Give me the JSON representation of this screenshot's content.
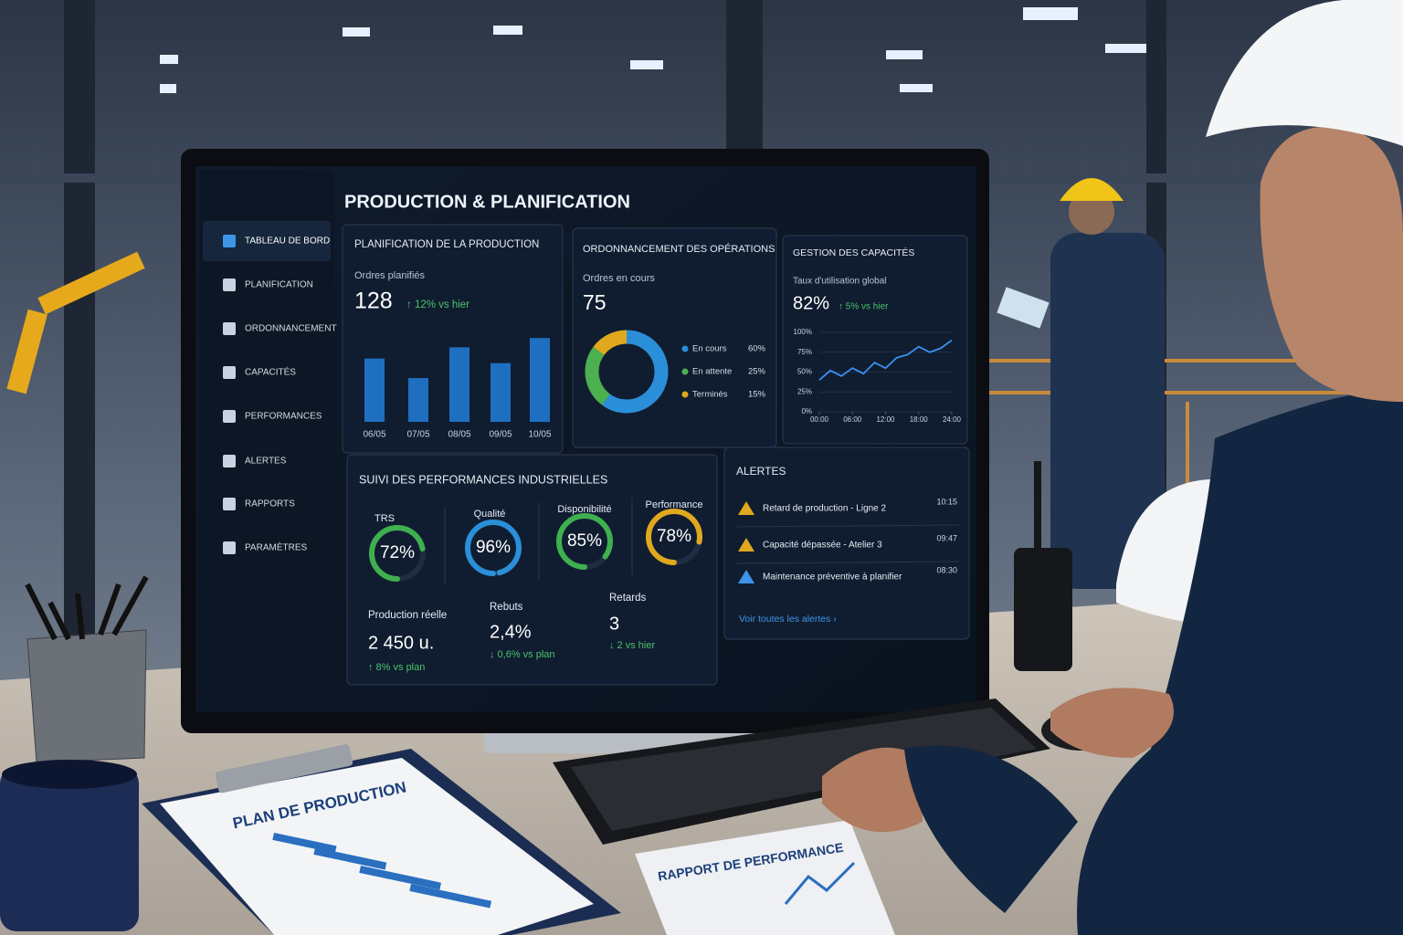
{
  "screen": {
    "title": "PRODUCTION & PLANIFICATION"
  },
  "sidebar": {
    "items": [
      "TABLEAU DE BORD",
      "PLANIFICATION",
      "ORDONNANCEMENT",
      "CAPACITÉS",
      "PERFORMANCES",
      "ALERTES",
      "RAPPORTS",
      "PARAMÈTRES"
    ],
    "active": 0
  },
  "planning": {
    "title": "PLANIFICATION DE LA PRODUCTION",
    "kpi_label": "Ordres planifiés",
    "kpi_value": "128",
    "kpi_delta": "↑ 12% vs hier",
    "chart": {
      "type": "bar",
      "categories": [
        "06/05",
        "07/05",
        "08/05",
        "09/05",
        "10/05"
      ],
      "values": [
        68,
        47,
        80,
        63,
        90
      ],
      "ylim": [
        0,
        100
      ],
      "color": "#1f6fc0"
    }
  },
  "scheduling": {
    "title": "ORDONNANCEMENT DES OPÉRATIONS",
    "kpi_label": "Ordres en cours",
    "kpi_value": "75",
    "chart": {
      "type": "donut",
      "categories": [
        "En cours",
        "En attente",
        "Terminés"
      ],
      "values": [
        60,
        25,
        15
      ],
      "value_labels": [
        "60%",
        "25%",
        "15%"
      ],
      "colors": [
        "#2a8fd8",
        "#4caf50",
        "#e0a81e"
      ]
    }
  },
  "capacity": {
    "title": "GESTION DES CAPACITÉS",
    "kpi_label": "Taux d'utilisation global",
    "kpi_value": "82%",
    "kpi_delta": "↑ 5% vs hier",
    "chart": {
      "type": "line",
      "x": [
        0,
        2,
        4,
        6,
        8,
        10,
        12,
        14,
        16,
        18,
        20,
        22,
        24
      ],
      "values": [
        40,
        52,
        45,
        55,
        48,
        62,
        55,
        68,
        72,
        82,
        75,
        80,
        90
      ],
      "xlim": [
        0,
        24
      ],
      "ylim": [
        0,
        100
      ],
      "xticks": [
        {
          "value": 0,
          "label": "00:00"
        },
        {
          "value": 6,
          "label": "06:00"
        },
        {
          "value": 12,
          "label": "12:00"
        },
        {
          "value": 18,
          "label": "18:00"
        },
        {
          "value": 24,
          "label": "24:00"
        }
      ],
      "yticks": [
        {
          "value": 0,
          "label": "0%"
        },
        {
          "value": 25,
          "label": "25%"
        },
        {
          "value": 50,
          "label": "50%"
        },
        {
          "value": 75,
          "label": "75%"
        },
        {
          "value": 100,
          "label": "100%"
        }
      ],
      "color": "#3b8ff0",
      "grid": true
    }
  },
  "performance": {
    "title": "SUIVI DES PERFORMANCES INDUSTRIELLES",
    "gauges": {
      "type": "gauge",
      "categories": [
        "TRS",
        "Qualité",
        "Disponibilité",
        "Performance"
      ],
      "values": [
        72,
        96,
        85,
        78
      ],
      "value_labels": [
        "72%",
        "96%",
        "85%",
        "78%"
      ],
      "colors": [
        "#3fb04f",
        "#2a8fd8",
        "#3fb04f",
        "#e0a81e"
      ],
      "ylim": [
        0,
        100
      ]
    },
    "kpis": [
      {
        "label": "Production réelle",
        "value": "2 450 u.",
        "delta": "↑ 8% vs plan"
      },
      {
        "label": "Rebuts",
        "value": "2,4%",
        "delta": "↓ 0,6% vs plan"
      },
      {
        "label": "Retards",
        "value": "3",
        "delta": "↓ 2 vs hier"
      }
    ]
  },
  "alerts": {
    "title": "ALERTES",
    "items": [
      {
        "text": "Retard de production - Ligne 2",
        "time": "10:15"
      },
      {
        "text": "Capacité dépassée - Atelier 3",
        "time": "09:47"
      },
      {
        "text": "Maintenance préventive à planifier",
        "time": "08:30"
      }
    ],
    "link": "Voir toutes les alertes ›"
  },
  "documents": {
    "plan": "PLAN DE PRODUCTION",
    "report": "RAPPORT DE PERFORMANCE"
  }
}
